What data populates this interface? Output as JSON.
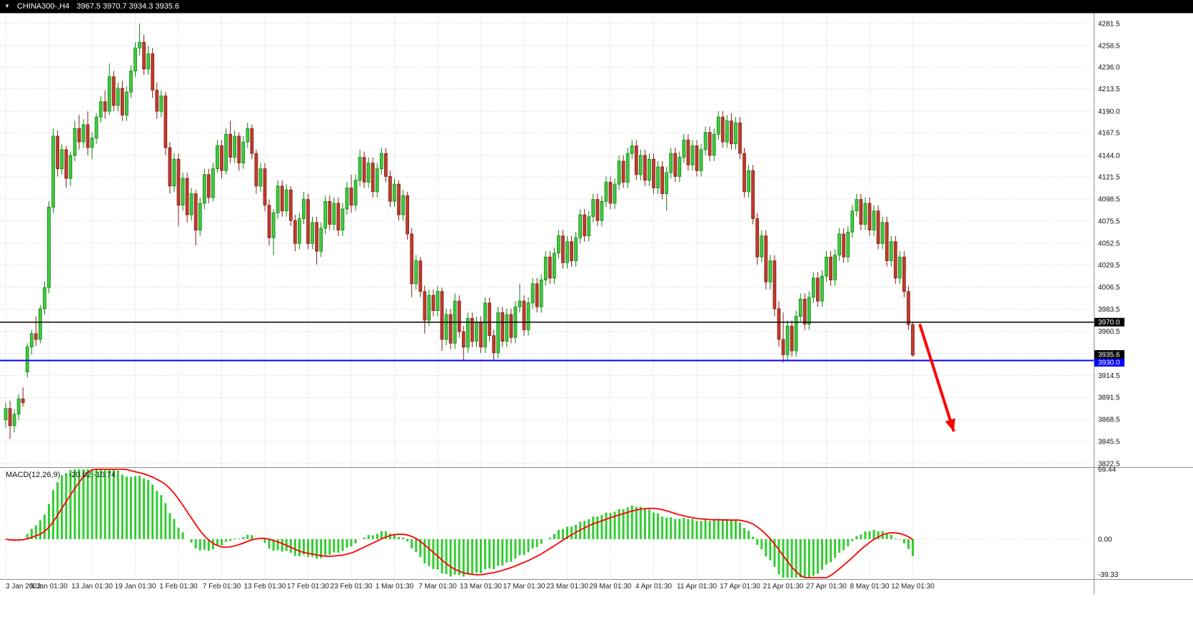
{
  "topbar": {
    "marker": "▼",
    "symbol_period": "CHINA300-,H4",
    "ohlc": "3967.5 3970.7 3934.3 3935.6"
  },
  "chart_data": {
    "type": "candlestick",
    "title": "CHINA300-,H4",
    "symbol": "CHINA300-",
    "timeframe": "H4",
    "ylim": [
      3822.5,
      4281.5
    ],
    "grid_color": "#CFCFCF",
    "candle_colors": {
      "bull_fill": "#3FCB3F",
      "bull_stroke": "#0F7F0F",
      "bear_fill": "#C13A2B",
      "bear_stroke": "#7E2014"
    },
    "y_axis_labels": [
      "4281.5",
      "4258.5",
      "4236.0",
      "4213.5",
      "4190.0",
      "4167.5",
      "4144.0",
      "4121.5",
      "4098.5",
      "4075.5",
      "4052.5",
      "4029.5",
      "4006.5",
      "3983.5",
      "3960.5",
      "3914.5",
      "3891.5",
      "3868.5",
      "3845.5",
      "3822.5"
    ],
    "y_gridlines": [
      4281.5,
      4258.5,
      4236.0,
      4213.5,
      4190.0,
      4167.5,
      4144.0,
      4121.5,
      4098.5,
      4075.5,
      4052.5,
      4029.5,
      4006.5,
      3983.5,
      3960.5,
      3937.5,
      3914.5,
      3891.5,
      3868.5,
      3845.5,
      3822.5
    ],
    "x_labels": [
      "3 Jan 2023",
      "9 Jan 01:30",
      "13 Jan 01:30",
      "19 Jan 01:30",
      "1 Feb 01:30",
      "7 Feb 01:30",
      "13 Feb 01:30",
      "17 Feb 01:30",
      "23 Feb 01:30",
      "1 Mar 01:30",
      "7 Mar 01:30",
      "13 Mar 01:30",
      "17 Mar 01:30",
      "23 Mar 01:30",
      "29 Mar 01:30",
      "4 Apr 01:30",
      "11 Apr 01:30",
      "17 Apr 01:30",
      "21 Apr 01:30",
      "27 Apr 01:30",
      "8 May 01:30",
      "12 May 01:30"
    ],
    "label_every": 10,
    "levels": [
      {
        "name": "horizontal-line-3970",
        "price": 3970.0,
        "label": "3970.0",
        "color": "#000000",
        "width": 1.5,
        "badge_dy": 0
      },
      {
        "name": "horizontal-line-3930",
        "price": 3930.0,
        "label": "3930.0",
        "color": "#0000FF",
        "width": 2,
        "badge_dy": 2.5
      }
    ],
    "bid": {
      "price": 3935.6,
      "label": "3935.6",
      "badge_color": "#000000",
      "badge_dy": -1
    },
    "indicator": {
      "type": "MACD",
      "name_label": "MACD(12,26,9)",
      "values_label": "-20.02 -10.74",
      "params": [
        12,
        26,
        9
      ],
      "axis_labels": [
        "69.44",
        "0.00",
        "-39.33"
      ],
      "ylim": [
        -39.33,
        69.44
      ],
      "histogram_color": "#32CD32",
      "signal_color": "#FF0000"
    },
    "annotations": [
      {
        "type": "arrow",
        "from_bar": 211.6,
        "from_price": 3968,
        "to_bar": 219.5,
        "to_price": 3856,
        "color": "#FF0000",
        "width": 4
      }
    ],
    "ohlc": [
      [
        3868,
        3886,
        3860,
        3880
      ],
      [
        3880,
        3888,
        3848,
        3862
      ],
      [
        3862,
        3879,
        3855,
        3874
      ],
      [
        3874,
        3895,
        3868,
        3890
      ],
      [
        3890,
        3902,
        3882,
        3886
      ],
      [
        3918,
        3948,
        3912,
        3944
      ],
      [
        3944,
        3962,
        3936,
        3958
      ],
      [
        3958,
        3976,
        3945,
        3952
      ],
      [
        3952,
        3988,
        3948,
        3984
      ],
      [
        3984,
        4012,
        3978,
        4006
      ],
      [
        4006,
        4096,
        4000,
        4090
      ],
      [
        4090,
        4172,
        4084,
        4164
      ],
      [
        4164,
        4170,
        4122,
        4130
      ],
      [
        4130,
        4156,
        4124,
        4150
      ],
      [
        4150,
        4154,
        4110,
        4120
      ],
      [
        4120,
        4148,
        4112,
        4144
      ],
      [
        4144,
        4180,
        4138,
        4172
      ],
      [
        4172,
        4186,
        4150,
        4158
      ],
      [
        4158,
        4182,
        4152,
        4176
      ],
      [
        4176,
        4190,
        4144,
        4152
      ],
      [
        4152,
        4168,
        4140,
        4162
      ],
      [
        4162,
        4188,
        4156,
        4184
      ],
      [
        4184,
        4206,
        4178,
        4200
      ],
      [
        4200,
        4212,
        4182,
        4190
      ],
      [
        4190,
        4240,
        4186,
        4226
      ],
      [
        4226,
        4232,
        4190,
        4196
      ],
      [
        4196,
        4220,
        4190,
        4214
      ],
      [
        4214,
        4222,
        4180,
        4186
      ],
      [
        4186,
        4216,
        4180,
        4210
      ],
      [
        4210,
        4238,
        4204,
        4232
      ],
      [
        4232,
        4262,
        4226,
        4256
      ],
      [
        4256,
        4281.5,
        4248,
        4262
      ],
      [
        4262,
        4270,
        4228,
        4234
      ],
      [
        4234,
        4258,
        4228,
        4250
      ],
      [
        4250,
        4256,
        4204,
        4212
      ],
      [
        4212,
        4220,
        4182,
        4190
      ],
      [
        4190,
        4212,
        4184,
        4206
      ],
      [
        4206,
        4210,
        4144,
        4152
      ],
      [
        4152,
        4158,
        4104,
        4112
      ],
      [
        4112,
        4146,
        4106,
        4140
      ],
      [
        4140,
        4146,
        4070,
        4092
      ],
      [
        4092,
        4126,
        4086,
        4120
      ],
      [
        4120,
        4126,
        4074,
        4082
      ],
      [
        4082,
        4110,
        4076,
        4104
      ],
      [
        4104,
        4108,
        4050,
        4066
      ],
      [
        4066,
        4100,
        4060,
        4094
      ],
      [
        4094,
        4130,
        4088,
        4124
      ],
      [
        4124,
        4130,
        4094,
        4100
      ],
      [
        4100,
        4136,
        4096,
        4130
      ],
      [
        4130,
        4160,
        4126,
        4154
      ],
      [
        4154,
        4160,
        4120,
        4128
      ],
      [
        4128,
        4172,
        4124,
        4166
      ],
      [
        4166,
        4180,
        4136,
        4142
      ],
      [
        4142,
        4170,
        4136,
        4164
      ],
      [
        4164,
        4168,
        4128,
        4136
      ],
      [
        4136,
        4164,
        4130,
        4158
      ],
      [
        4158,
        4178,
        4152,
        4172
      ],
      [
        4172,
        4176,
        4140,
        4146
      ],
      [
        4146,
        4150,
        4104,
        4112
      ],
      [
        4112,
        4136,
        4106,
        4130
      ],
      [
        4130,
        4136,
        4086,
        4092
      ],
      [
        4092,
        4098,
        4050,
        4058
      ],
      [
        4058,
        4088,
        4040,
        4084
      ],
      [
        4084,
        4118,
        4078,
        4112
      ],
      [
        4112,
        4118,
        4080,
        4086
      ],
      [
        4086,
        4114,
        4080,
        4108
      ],
      [
        4108,
        4112,
        4070,
        4076
      ],
      [
        4076,
        4082,
        4044,
        4052
      ],
      [
        4052,
        4084,
        4046,
        4078
      ],
      [
        4078,
        4106,
        4072,
        4098
      ],
      [
        4098,
        4104,
        4046,
        4052
      ],
      [
        4052,
        4080,
        4046,
        4074
      ],
      [
        4074,
        4080,
        4030,
        4044
      ],
      [
        4044,
        4074,
        4038,
        4068
      ],
      [
        4068,
        4102,
        4062,
        4096
      ],
      [
        4096,
        4102,
        4066,
        4072
      ],
      [
        4072,
        4100,
        4066,
        4094
      ],
      [
        4094,
        4100,
        4060,
        4066
      ],
      [
        4066,
        4094,
        4060,
        4088
      ],
      [
        4088,
        4116,
        4082,
        4110
      ],
      [
        4110,
        4124,
        4084,
        4092
      ],
      [
        4092,
        4124,
        4086,
        4118
      ],
      [
        4118,
        4150,
        4112,
        4142
      ],
      [
        4142,
        4148,
        4110,
        4116
      ],
      [
        4116,
        4142,
        4110,
        4136
      ],
      [
        4136,
        4142,
        4100,
        4106
      ],
      [
        4106,
        4136,
        4100,
        4130
      ],
      [
        4130,
        4152,
        4124,
        4146
      ],
      [
        4146,
        4152,
        4116,
        4122
      ],
      [
        4122,
        4128,
        4090,
        4096
      ],
      [
        4096,
        4120,
        4090,
        4114
      ],
      [
        4114,
        4118,
        4076,
        4082
      ],
      [
        4082,
        4108,
        4076,
        4102
      ],
      [
        4102,
        4106,
        4056,
        4062
      ],
      [
        4062,
        4068,
        3996,
        4010
      ],
      [
        4010,
        4040,
        4004,
        4034
      ],
      [
        4034,
        4038,
        3996,
        4002
      ],
      [
        4002,
        4008,
        3958,
        3972
      ],
      [
        3972,
        4004,
        3966,
        3998
      ],
      [
        3998,
        4004,
        3976,
        3982
      ],
      [
        3982,
        4008,
        3976,
        4002
      ],
      [
        4002,
        4006,
        3940,
        3952
      ],
      [
        3952,
        3984,
        3946,
        3978
      ],
      [
        3978,
        3984,
        3942,
        3948
      ],
      [
        3948,
        4000,
        3942,
        3992
      ],
      [
        3992,
        3998,
        3954,
        3960
      ],
      [
        3960,
        3966,
        3930,
        3944
      ],
      [
        3944,
        3980,
        3938,
        3974
      ],
      [
        3974,
        3980,
        3944,
        3950
      ],
      [
        3950,
        3976,
        3944,
        3970
      ],
      [
        3970,
        3976,
        3938,
        3944
      ],
      [
        3944,
        3996,
        3938,
        3990
      ],
      [
        3990,
        3996,
        3950,
        3956
      ],
      [
        3956,
        3962,
        3930,
        3938
      ],
      [
        3938,
        3986,
        3932,
        3980
      ],
      [
        3980,
        3986,
        3944,
        3950
      ],
      [
        3950,
        3984,
        3944,
        3978
      ],
      [
        3978,
        3984,
        3948,
        3954
      ],
      [
        3954,
        3992,
        3948,
        3986
      ],
      [
        3986,
        4010,
        3980,
        3992
      ],
      [
        3992,
        3998,
        3956,
        3962
      ],
      [
        3962,
        3996,
        3956,
        3990
      ],
      [
        3990,
        4016,
        3984,
        4010
      ],
      [
        4010,
        4016,
        3980,
        3986
      ],
      [
        3986,
        4020,
        3980,
        4014
      ],
      [
        4014,
        4044,
        4008,
        4038
      ],
      [
        4038,
        4044,
        4010,
        4016
      ],
      [
        4016,
        4048,
        4010,
        4042
      ],
      [
        4042,
        4066,
        4036,
        4060
      ],
      [
        4060,
        4066,
        4026,
        4032
      ],
      [
        4032,
        4060,
        4026,
        4054
      ],
      [
        4054,
        4060,
        4028,
        4034
      ],
      [
        4034,
        4064,
        4028,
        4058
      ],
      [
        4058,
        4088,
        4052,
        4082
      ],
      [
        4082,
        4088,
        4054,
        4060
      ],
      [
        4060,
        4086,
        4054,
        4080
      ],
      [
        4080,
        4104,
        4074,
        4098
      ],
      [
        4098,
        4104,
        4070,
        4076
      ],
      [
        4076,
        4102,
        4070,
        4096
      ],
      [
        4096,
        4122,
        4090,
        4116
      ],
      [
        4116,
        4122,
        4088,
        4094
      ],
      [
        4094,
        4120,
        4088,
        4114
      ],
      [
        4114,
        4144,
        4108,
        4138
      ],
      [
        4138,
        4144,
        4110,
        4116
      ],
      [
        4116,
        4152,
        4110,
        4146
      ],
      [
        4146,
        4160,
        4140,
        4154
      ],
      [
        4154,
        4160,
        4118,
        4124
      ],
      [
        4124,
        4150,
        4118,
        4144
      ],
      [
        4144,
        4150,
        4112,
        4118
      ],
      [
        4118,
        4146,
        4112,
        4140
      ],
      [
        4140,
        4146,
        4104,
        4110
      ],
      [
        4110,
        4138,
        4104,
        4132
      ],
      [
        4132,
        4138,
        4098,
        4104
      ],
      [
        4104,
        4132,
        4086,
        4126
      ],
      [
        4126,
        4152,
        4120,
        4146
      ],
      [
        4146,
        4152,
        4116,
        4122
      ],
      [
        4122,
        4148,
        4116,
        4142
      ],
      [
        4142,
        4166,
        4136,
        4160
      ],
      [
        4160,
        4166,
        4128,
        4134
      ],
      [
        4134,
        4160,
        4128,
        4154
      ],
      [
        4154,
        4160,
        4122,
        4128
      ],
      [
        4128,
        4156,
        4122,
        4150
      ],
      [
        4150,
        4174,
        4144,
        4168
      ],
      [
        4168,
        4174,
        4138,
        4144
      ],
      [
        4144,
        4172,
        4138,
        4166
      ],
      [
        4166,
        4190,
        4160,
        4184
      ],
      [
        4184,
        4190,
        4152,
        4158
      ],
      [
        4158,
        4186,
        4152,
        4180
      ],
      [
        4180,
        4188,
        4150,
        4156
      ],
      [
        4156,
        4184,
        4150,
        4178
      ],
      [
        4178,
        4184,
        4140,
        4146
      ],
      [
        4146,
        4152,
        4100,
        4106
      ],
      [
        4106,
        4134,
        4100,
        4128
      ],
      [
        4128,
        4134,
        4072,
        4078
      ],
      [
        4078,
        4084,
        4030,
        4038
      ],
      [
        4038,
        4066,
        4032,
        4060
      ],
      [
        4060,
        4066,
        4004,
        4012
      ],
      [
        4012,
        4040,
        4004,
        4034
      ],
      [
        4034,
        4040,
        3976,
        3984
      ],
      [
        3984,
        3992,
        3944,
        3952
      ],
      [
        3952,
        3980,
        3928,
        3936
      ],
      [
        3936,
        3972,
        3930,
        3966
      ],
      [
        3966,
        3972,
        3934,
        3940
      ],
      [
        3940,
        3982,
        3934,
        3976
      ],
      [
        3976,
        4000,
        3970,
        3994
      ],
      [
        3994,
        4000,
        3962,
        3968
      ],
      [
        3968,
        4002,
        3962,
        3996
      ],
      [
        3996,
        4022,
        3990,
        4016
      ],
      [
        4016,
        4022,
        3986,
        3992
      ],
      [
        3992,
        4024,
        3986,
        4018
      ],
      [
        4018,
        4044,
        4012,
        4038
      ],
      [
        4038,
        4044,
        4008,
        4014
      ],
      [
        4014,
        4046,
        4008,
        4040
      ],
      [
        4040,
        4068,
        4034,
        4062
      ],
      [
        4062,
        4068,
        4032,
        4038
      ],
      [
        4038,
        4070,
        4032,
        4064
      ],
      [
        4064,
        4092,
        4058,
        4086
      ],
      [
        4086,
        4104,
        4080,
        4098
      ],
      [
        4098,
        4104,
        4066,
        4072
      ],
      [
        4072,
        4100,
        4066,
        4094
      ],
      [
        4094,
        4100,
        4060,
        4066
      ],
      [
        4066,
        4092,
        4060,
        4086
      ],
      [
        4086,
        4092,
        4046,
        4052
      ],
      [
        4052,
        4080,
        4046,
        4074
      ],
      [
        4074,
        4080,
        4028,
        4034
      ],
      [
        4034,
        4060,
        4028,
        4054
      ],
      [
        4054,
        4060,
        4010,
        4016
      ],
      [
        4016,
        4044,
        4010,
        4038
      ],
      [
        4038,
        4044,
        3996,
        4002
      ],
      [
        4002,
        4008,
        3962,
        3967.5
      ],
      [
        3967.5,
        3970.7,
        3934.3,
        3935.6
      ]
    ]
  }
}
